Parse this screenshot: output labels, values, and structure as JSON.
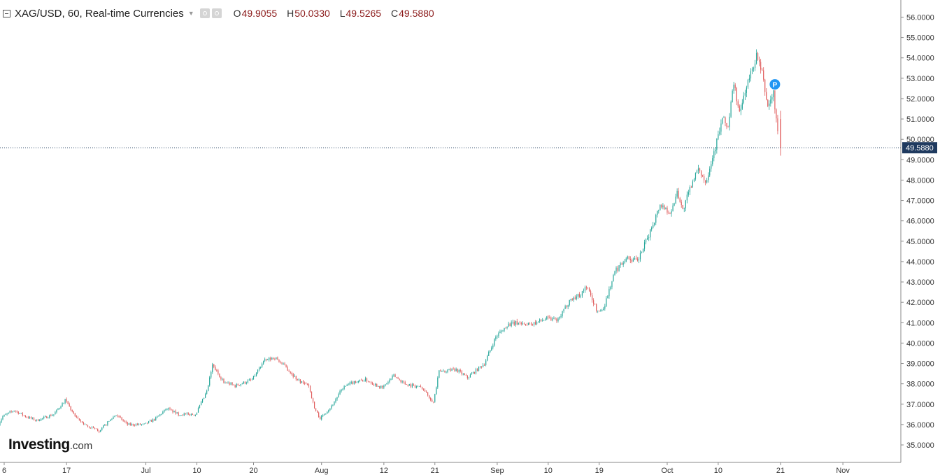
{
  "header": {
    "title": "XAG/USD, 60, Real-time Currencies",
    "open_label": "O",
    "open": "49.9055",
    "high_label": "H",
    "high": "50.0330",
    "low_label": "L",
    "low": "49.5265",
    "close_label": "C",
    "close": "49.5880"
  },
  "logo": {
    "brand": "Investing",
    "suffix": ".com"
  },
  "marker": {
    "label": "P",
    "icon": "pivot-marker-icon"
  },
  "colors": {
    "up": "#26a69a",
    "down": "#e05d5d",
    "price_line": "#1f3a5f",
    "price_label_bg": "#1f3a5f",
    "marker": "#2196f3"
  },
  "chart_data": {
    "type": "candlestick",
    "title": "XAG/USD, 60, Real-time Currencies",
    "xlabel": "",
    "ylabel": "",
    "ylim": [
      34.3,
      56.4
    ],
    "grid": false,
    "current_price": 49.588,
    "current_price_label": "49.5880",
    "y_ticks": [
      "35.0000",
      "36.0000",
      "37.0000",
      "38.0000",
      "39.0000",
      "40.0000",
      "41.0000",
      "42.0000",
      "43.0000",
      "44.0000",
      "45.0000",
      "46.0000",
      "47.0000",
      "48.0000",
      "49.0000",
      "50.0000",
      "51.0000",
      "52.0000",
      "53.0000",
      "54.0000",
      "55.0000",
      "56.0000"
    ],
    "x_ticks": [
      {
        "label": "6",
        "date": "2025-06-06"
      },
      {
        "label": "17",
        "date": "2025-06-17"
      },
      {
        "label": "Jul",
        "date": "2025-07-01"
      },
      {
        "label": "10",
        "date": "2025-07-10"
      },
      {
        "label": "20",
        "date": "2025-07-20"
      },
      {
        "label": "Aug",
        "date": "2025-08-01"
      },
      {
        "label": "12",
        "date": "2025-08-12"
      },
      {
        "label": "21",
        "date": "2025-08-21"
      },
      {
        "label": "Sep",
        "date": "2025-09-01"
      },
      {
        "label": "10",
        "date": "2025-09-10"
      },
      {
        "label": "19",
        "date": "2025-09-19"
      },
      {
        "label": "Oct",
        "date": "2025-10-01"
      },
      {
        "label": "10",
        "date": "2025-10-10"
      },
      {
        "label": "21",
        "date": "2025-10-21"
      },
      {
        "label": "Nov",
        "date": "2025-11-01"
      }
    ],
    "close_path": [
      {
        "date": "2025-06-05",
        "close": 35.9
      },
      {
        "date": "2025-06-06",
        "close": 36.4
      },
      {
        "date": "2025-06-08",
        "close": 36.7
      },
      {
        "date": "2025-06-10",
        "close": 36.4
      },
      {
        "date": "2025-06-12",
        "close": 36.2
      },
      {
        "date": "2025-06-15",
        "close": 36.5
      },
      {
        "date": "2025-06-17",
        "close": 37.2
      },
      {
        "date": "2025-06-19",
        "close": 36.3
      },
      {
        "date": "2025-06-21",
        "close": 35.9
      },
      {
        "date": "2025-06-23",
        "close": 35.7
      },
      {
        "date": "2025-06-26",
        "close": 36.5
      },
      {
        "date": "2025-06-28",
        "close": 36.0
      },
      {
        "date": "2025-07-01",
        "close": 36.0
      },
      {
        "date": "2025-07-03",
        "close": 36.3
      },
      {
        "date": "2025-07-05",
        "close": 36.8
      },
      {
        "date": "2025-07-07",
        "close": 36.5
      },
      {
        "date": "2025-07-10",
        "close": 36.5
      },
      {
        "date": "2025-07-12",
        "close": 37.6
      },
      {
        "date": "2025-07-13",
        "close": 38.9
      },
      {
        "date": "2025-07-15",
        "close": 38.1
      },
      {
        "date": "2025-07-17",
        "close": 37.9
      },
      {
        "date": "2025-07-20",
        "close": 38.2
      },
      {
        "date": "2025-07-22",
        "close": 39.1
      },
      {
        "date": "2025-07-24",
        "close": 39.3
      },
      {
        "date": "2025-07-26",
        "close": 38.8
      },
      {
        "date": "2025-07-28",
        "close": 38.2
      },
      {
        "date": "2025-07-30",
        "close": 37.9
      },
      {
        "date": "2025-07-31",
        "close": 36.8
      },
      {
        "date": "2025-08-01",
        "close": 36.3
      },
      {
        "date": "2025-08-03",
        "close": 36.9
      },
      {
        "date": "2025-08-05",
        "close": 37.8
      },
      {
        "date": "2025-08-07",
        "close": 38.1
      },
      {
        "date": "2025-08-09",
        "close": 38.2
      },
      {
        "date": "2025-08-12",
        "close": 37.8
      },
      {
        "date": "2025-08-14",
        "close": 38.4
      },
      {
        "date": "2025-08-16",
        "close": 38.0
      },
      {
        "date": "2025-08-19",
        "close": 37.8
      },
      {
        "date": "2025-08-21",
        "close": 37.1
      },
      {
        "date": "2025-08-22",
        "close": 38.6
      },
      {
        "date": "2025-08-25",
        "close": 38.7
      },
      {
        "date": "2025-08-27",
        "close": 38.3
      },
      {
        "date": "2025-08-30",
        "close": 39.0
      },
      {
        "date": "2025-09-01",
        "close": 40.3
      },
      {
        "date": "2025-09-03",
        "close": 40.9
      },
      {
        "date": "2025-09-05",
        "close": 41.0
      },
      {
        "date": "2025-09-07",
        "close": 40.9
      },
      {
        "date": "2025-09-10",
        "close": 41.2
      },
      {
        "date": "2025-09-12",
        "close": 41.1
      },
      {
        "date": "2025-09-14",
        "close": 42.1
      },
      {
        "date": "2025-09-16",
        "close": 42.4
      },
      {
        "date": "2025-09-17",
        "close": 42.8
      },
      {
        "date": "2025-09-19",
        "close": 41.5
      },
      {
        "date": "2025-09-20",
        "close": 41.7
      },
      {
        "date": "2025-09-22",
        "close": 43.5
      },
      {
        "date": "2025-09-24",
        "close": 44.2
      },
      {
        "date": "2025-09-26",
        "close": 44.0
      },
      {
        "date": "2025-09-28",
        "close": 45.3
      },
      {
        "date": "2025-09-30",
        "close": 46.8
      },
      {
        "date": "2025-10-02",
        "close": 46.4
      },
      {
        "date": "2025-10-03",
        "close": 47.5
      },
      {
        "date": "2025-10-04",
        "close": 46.5
      },
      {
        "date": "2025-10-06",
        "close": 48.2
      },
      {
        "date": "2025-10-07",
        "close": 48.5
      },
      {
        "date": "2025-10-08",
        "close": 47.9
      },
      {
        "date": "2025-10-09",
        "close": 48.9
      },
      {
        "date": "2025-10-10",
        "close": 49.9
      },
      {
        "date": "2025-10-11",
        "close": 51.0
      },
      {
        "date": "2025-10-12",
        "close": 50.6
      },
      {
        "date": "2025-10-13",
        "close": 52.8
      },
      {
        "date": "2025-10-14",
        "close": 51.2
      },
      {
        "date": "2025-10-15",
        "close": 52.4
      },
      {
        "date": "2025-10-16",
        "close": 53.2
      },
      {
        "date": "2025-10-17",
        "close": 54.1
      },
      {
        "date": "2025-10-18",
        "close": 53.2
      },
      {
        "date": "2025-10-19",
        "close": 51.6
      },
      {
        "date": "2025-10-20",
        "close": 52.3
      },
      {
        "date": "2025-10-21",
        "close": 49.588
      }
    ]
  }
}
